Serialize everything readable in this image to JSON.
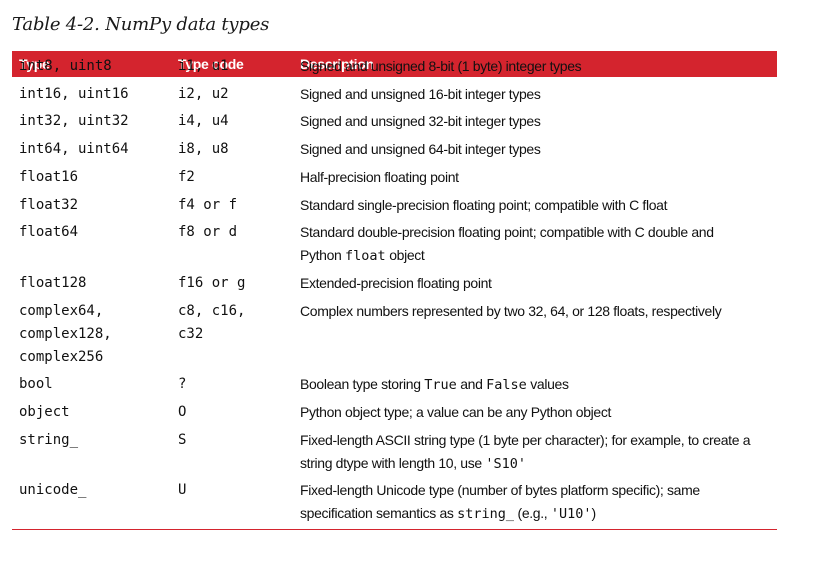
{
  "caption": "Table 4-2. NumPy data types",
  "columns": {
    "type": "Type",
    "type_code": "Type code",
    "description": "Description"
  },
  "rows": [
    {
      "type": [
        "int8, uint8"
      ],
      "code": [
        "i1, u1"
      ],
      "desc": [
        [
          "Signed and unsigned 8-bit (1 byte) integer types"
        ]
      ]
    },
    {
      "type": [
        "int16, uint16"
      ],
      "code": [
        "i2, u2"
      ],
      "desc": [
        [
          "Signed and unsigned 16-bit integer types"
        ]
      ]
    },
    {
      "type": [
        "int32, uint32"
      ],
      "code": [
        "i4, u4"
      ],
      "desc": [
        [
          "Signed and unsigned 32-bit integer types"
        ]
      ]
    },
    {
      "type": [
        "int64, uint64"
      ],
      "code": [
        "i8, u8"
      ],
      "desc": [
        [
          "Signed and unsigned 64-bit integer types"
        ]
      ]
    },
    {
      "type": [
        "float16"
      ],
      "code": [
        "f2"
      ],
      "desc": [
        [
          "Half-precision floating point"
        ]
      ]
    },
    {
      "type": [
        "float32"
      ],
      "code": [
        "f4 or f"
      ],
      "desc": [
        [
          "Standard single-precision floating point; compatible with C float"
        ]
      ]
    },
    {
      "type": [
        "float64"
      ],
      "code": [
        "f8 or d"
      ],
      "desc": [
        [
          "Standard double-precision floating point; compatible with C double and"
        ],
        [
          "Python ",
          {
            "code": "float"
          },
          " object"
        ]
      ]
    },
    {
      "type": [
        "float128"
      ],
      "code": [
        "f16 or g"
      ],
      "desc": [
        [
          "Extended-precision floating point"
        ]
      ]
    },
    {
      "type": [
        "complex64,",
        "complex128,",
        "complex256"
      ],
      "code": [
        "c8, c16,",
        "c32"
      ],
      "desc": [
        [
          "Complex numbers represented by two 32, 64, or 128 floats, respectively"
        ]
      ]
    },
    {
      "type": [
        "bool"
      ],
      "code": [
        "?"
      ],
      "desc": [
        [
          "Boolean type storing ",
          {
            "code": "True"
          },
          " and ",
          {
            "code": "False"
          },
          " values"
        ]
      ]
    },
    {
      "type": [
        "object"
      ],
      "code": [
        "O"
      ],
      "desc": [
        [
          "Python object type; a value can be any Python object"
        ]
      ]
    },
    {
      "type": [
        "string_"
      ],
      "code": [
        "S"
      ],
      "desc": [
        [
          "Fixed-length ASCII string type (1 byte per character); for example, to create a"
        ],
        [
          "string dtype with length 10, use ",
          {
            "code": "'S10'"
          }
        ]
      ]
    },
    {
      "type": [
        "unicode_"
      ],
      "code": [
        "U"
      ],
      "desc": [
        [
          "Fixed-length Unicode type (number of bytes platform specific); same"
        ],
        [
          "specification semantics as ",
          {
            "code": "string_"
          },
          " (e.g., ",
          {
            "code": "'U10'"
          },
          ")"
        ]
      ]
    }
  ],
  "accent_color": "#d4242e"
}
